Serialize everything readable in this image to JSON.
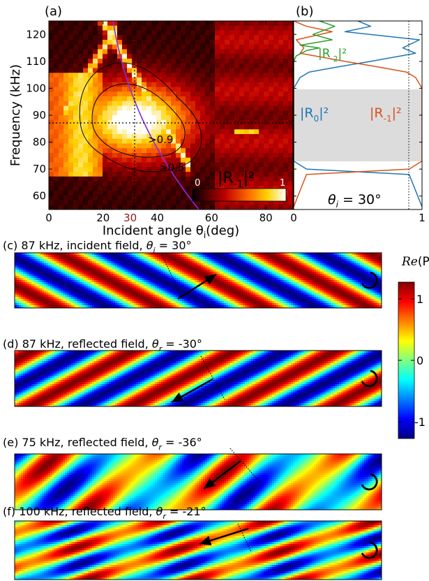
{
  "panel_a": {
    "label": "(a)",
    "ylabel": "Frequency (kHz)",
    "xlabel": "Incident angle θ",
    "xlabel_sub": "i",
    "xlabel_unit": "(deg)",
    "x_ticks": [
      "0",
      "20",
      "30",
      "40",
      "60",
      "80"
    ],
    "y_ticks": [
      "60",
      "70",
      "80",
      "90",
      "100",
      "110",
      "120"
    ],
    "contour_labels": [
      ">0.9",
      ">0.5"
    ],
    "colorbar_title": "|R",
    "colorbar_sub": "-1",
    "colorbar_sup": "|²",
    "colorbar_min": "0",
    "colorbar_max": "1",
    "highlight_color": "#8b1a1a"
  },
  "panel_b": {
    "label": "(b)",
    "x_ticks": [
      "0",
      "1"
    ],
    "legend_r0": "|R",
    "legend_r0_sub": "0",
    "legend_r0_sup": "|²",
    "legend_rm1": "|R",
    "legend_rm1_sub": "-1",
    "legend_rm1_sup": "|²",
    "legend_rm2": "|R",
    "legend_rm2_sub": "-2",
    "legend_rm2_sup": "|²",
    "angle_text": "θ",
    "angle_sub": "i",
    "angle_value": " = 30°",
    "colors": {
      "r0": "#1f77b4",
      "rm1": "#d95319",
      "rm2": "#2ca02c"
    }
  },
  "field_panels": [
    {
      "label": "(c) 87 kHz, incident field, ",
      "theta": "θ",
      "sub": "i",
      "value": " = 30°"
    },
    {
      "label": "(d) 87 kHz, reflected field, ",
      "theta": "θ",
      "sub": "r",
      "value": " = -30°"
    },
    {
      "label": "(e) 75 kHz, reflected field, ",
      "theta": "θ",
      "sub": "r",
      "value": " = -36°"
    },
    {
      "label": "(f) 100 kHz, reflected field, ",
      "theta": "θ",
      "sub": "r",
      "value": " = -21°"
    }
  ],
  "field_colorbar": {
    "title_re": "Re",
    "title_rest": "(P)",
    "ticks": [
      "1",
      "0",
      "-1"
    ]
  },
  "chart_data": [
    {
      "type": "heatmap",
      "panel": "(a)",
      "xlabel": "Incident angle θi (deg)",
      "ylabel": "Frequency (kHz)",
      "xlim": [
        0,
        90
      ],
      "ylim": [
        55,
        125
      ],
      "x_ticks": [
        0,
        20,
        30,
        40,
        60,
        80
      ],
      "y_ticks": [
        60,
        70,
        80,
        90,
        100,
        110,
        120
      ],
      "colorbar": "|R-1|²",
      "colorbar_range": [
        0,
        1
      ],
      "crosshair": {
        "x": 30,
        "y": 88
      },
      "contours": [
        0.9,
        0.5
      ]
    },
    {
      "type": "line",
      "panel": "(b)",
      "xlim": [
        0,
        1
      ],
      "ylim": [
        55,
        125
      ],
      "band": [
        74,
        101
      ],
      "vline": 0.9,
      "series": [
        {
          "name": "|R0|²",
          "x": [
            1.0,
            0.9,
            0.1,
            0.0,
            0.0,
            0.0,
            0.0,
            0.05,
            0.12,
            0.35,
            0.6,
            0.95,
            0.85,
            0.98,
            0.4,
            0.6,
            0.5
          ],
          "y": [
            56,
            68,
            70,
            73,
            80,
            90,
            100,
            104,
            106,
            108,
            110,
            113,
            115,
            118,
            121,
            123,
            125
          ]
        },
        {
          "name": "|R-1|²",
          "x": [
            0.0,
            0.1,
            0.9,
            1.0,
            1.0,
            1.0,
            1.0,
            0.95,
            0.88,
            0.65,
            0.4,
            0.05,
            0.08,
            0.02,
            0.3,
            0.1,
            0.0
          ],
          "y": [
            56,
            68,
            70,
            73,
            80,
            90,
            100,
            104,
            106,
            108,
            110,
            113,
            115,
            118,
            121,
            123,
            125
          ]
        },
        {
          "name": "|R-2|²",
          "x": [
            0.0,
            0.0,
            0.0,
            0.02,
            0.1,
            0.2,
            0.05,
            0.3,
            0.15,
            0.32,
            0.2
          ],
          "y": [
            56,
            90,
            110,
            112,
            114,
            115,
            116,
            118,
            120,
            123,
            125
          ]
        }
      ]
    }
  ]
}
